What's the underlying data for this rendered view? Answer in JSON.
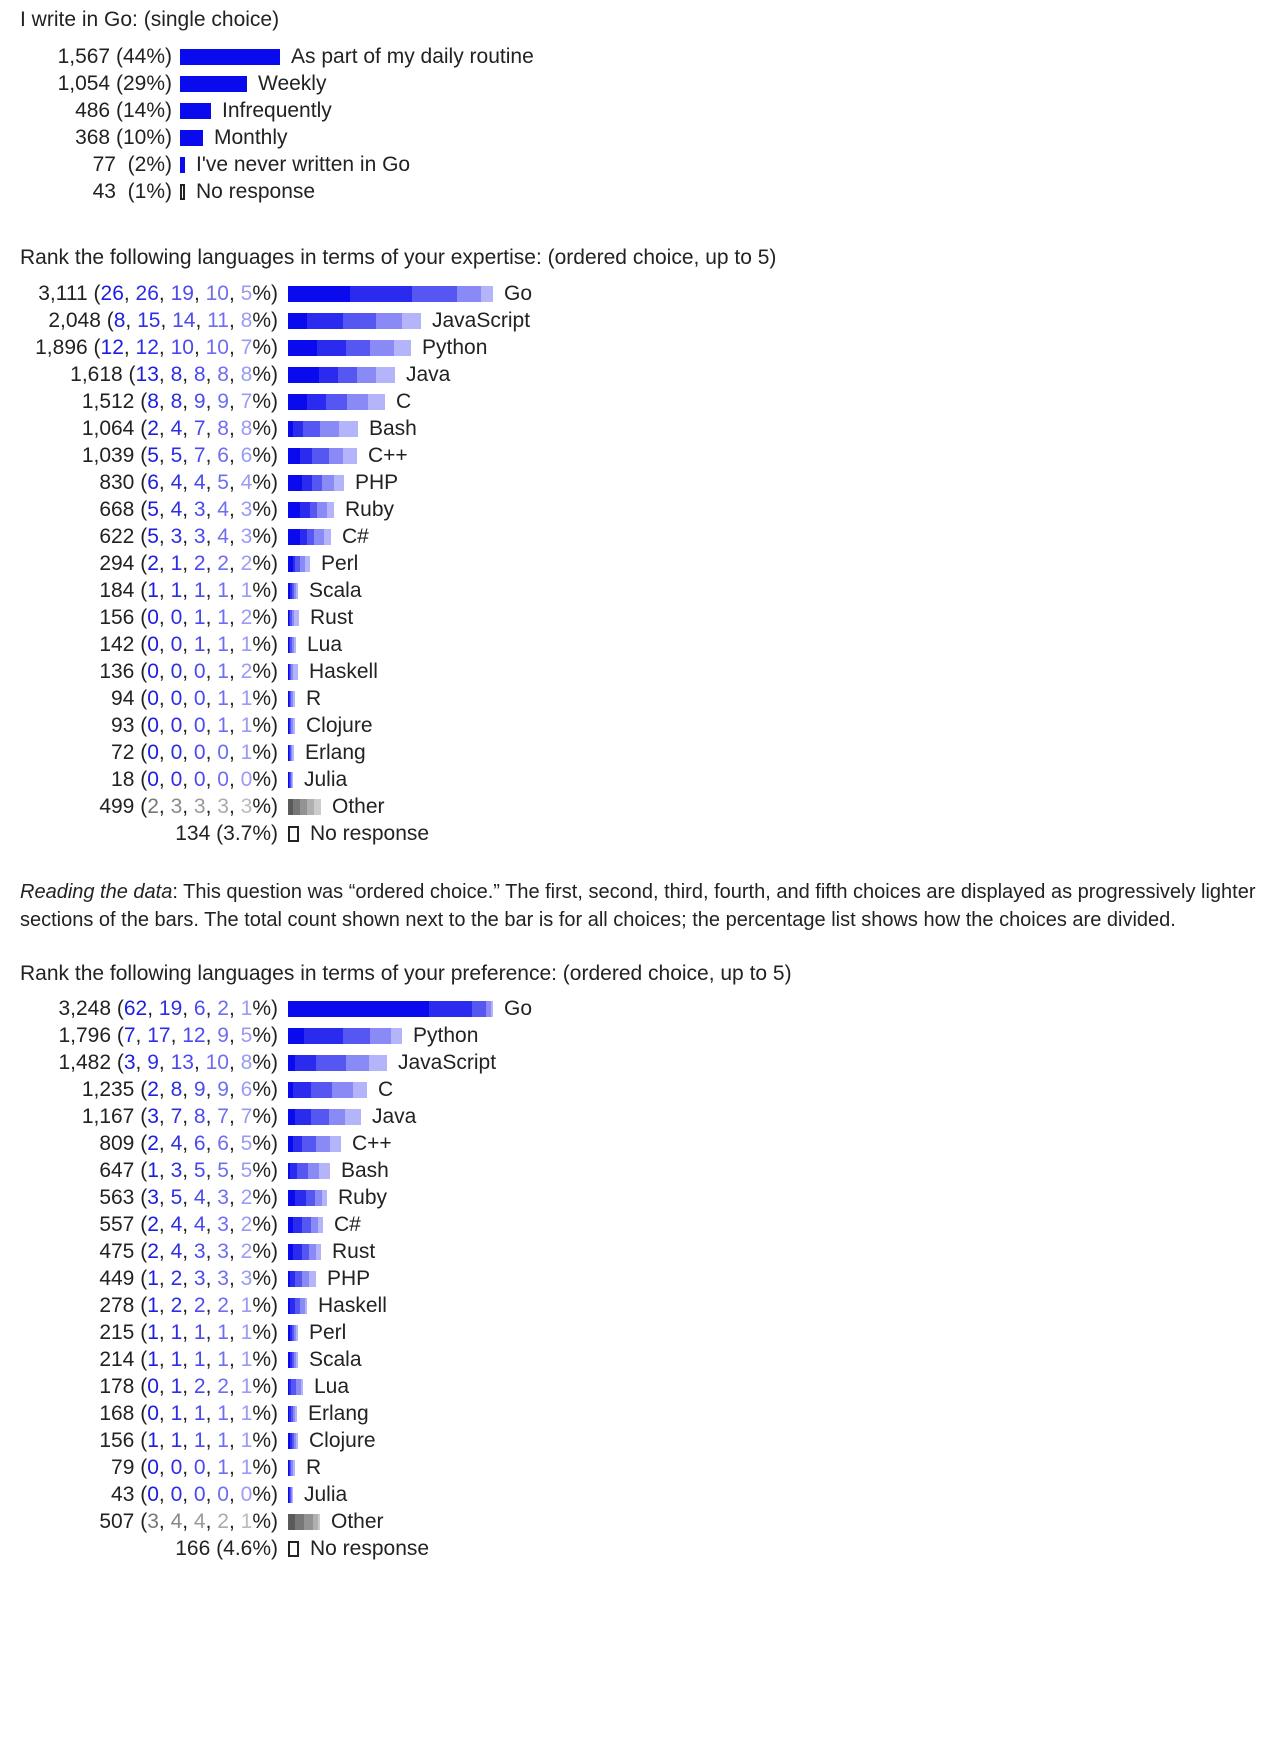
{
  "colors": {
    "text": "#222222",
    "bar": "#0a0aee",
    "ordered_shades": [
      "#0a0aee",
      "#2b2bf0",
      "#5656f3",
      "#8a8af7",
      "#b4b4fa"
    ],
    "other_shades": [
      "#5a5a5a",
      "#777777",
      "#939393",
      "#b0b0b0",
      "#cccccc"
    ],
    "percent_shades": [
      "#1d1dde",
      "#2e2ee6",
      "#4a4aee",
      "#6e6ef3",
      "#9a9af7"
    ],
    "other_percent_shades": [
      "#777777",
      "#888888",
      "#999999",
      "#aaaaaa",
      "#bbbbbb"
    ]
  },
  "chart_data": [
    {
      "type": "bar",
      "title": "I write in Go: (single choice)",
      "rows": [
        {
          "label": "As part of my daily routine",
          "count": "1,567",
          "pct": "(44%)",
          "value": 1567
        },
        {
          "label": "Weekly",
          "count": "1,054",
          "pct": "(29%)",
          "value": 1054
        },
        {
          "label": "Infrequently",
          "count": "486",
          "pct": "(14%)",
          "value": 486
        },
        {
          "label": "Monthly",
          "count": "368",
          "pct": "(10%)",
          "value": 368
        },
        {
          "label": "I've never written in Go",
          "count": "77",
          "pct": "(2%)",
          "value": 77
        },
        {
          "label": "No response",
          "count": "43",
          "pct": "(1%)",
          "value": 43,
          "no_response": true
        }
      ]
    },
    {
      "type": "bar",
      "title": "Rank the following languages in terms of your expertise: (ordered choice, up to 5)",
      "rows": [
        {
          "label": "Go",
          "count": "3,111",
          "values": [
            26,
            26,
            19,
            10,
            5
          ]
        },
        {
          "label": "JavaScript",
          "count": "2,048",
          "values": [
            8,
            15,
            14,
            11,
            8
          ]
        },
        {
          "label": "Python",
          "count": "1,896",
          "values": [
            12,
            12,
            10,
            10,
            7
          ]
        },
        {
          "label": "Java",
          "count": "1,618",
          "values": [
            13,
            8,
            8,
            8,
            8
          ]
        },
        {
          "label": "C",
          "count": "1,512",
          "values": [
            8,
            8,
            9,
            9,
            7
          ]
        },
        {
          "label": "Bash",
          "count": "1,064",
          "values": [
            2,
            4,
            7,
            8,
            8
          ]
        },
        {
          "label": "C++",
          "count": "1,039",
          "values": [
            5,
            5,
            7,
            6,
            6
          ]
        },
        {
          "label": "PHP",
          "count": "830",
          "values": [
            6,
            4,
            4,
            5,
            4
          ]
        },
        {
          "label": "Ruby",
          "count": "668",
          "values": [
            5,
            4,
            3,
            4,
            3
          ]
        },
        {
          "label": "C#",
          "count": "622",
          "values": [
            5,
            3,
            3,
            4,
            3
          ]
        },
        {
          "label": "Perl",
          "count": "294",
          "values": [
            2,
            1,
            2,
            2,
            2
          ]
        },
        {
          "label": "Scala",
          "count": "184",
          "values": [
            1,
            1,
            1,
            1,
            1
          ]
        },
        {
          "label": "Rust",
          "count": "156",
          "values": [
            0,
            0,
            1,
            1,
            2
          ]
        },
        {
          "label": "Lua",
          "count": "142",
          "values": [
            0,
            0,
            1,
            1,
            1
          ]
        },
        {
          "label": "Haskell",
          "count": "136",
          "values": [
            0,
            0,
            0,
            1,
            2
          ]
        },
        {
          "label": "R",
          "count": "94",
          "values": [
            0,
            0,
            0,
            1,
            1
          ]
        },
        {
          "label": "Clojure",
          "count": "93",
          "values": [
            0,
            0,
            0,
            1,
            1
          ]
        },
        {
          "label": "Erlang",
          "count": "72",
          "values": [
            0,
            0,
            0,
            0,
            1
          ]
        },
        {
          "label": "Julia",
          "count": "18",
          "values": [
            0,
            0,
            0,
            0,
            0
          ]
        },
        {
          "label": "Other",
          "count": "499",
          "values": [
            2,
            3,
            3,
            3,
            3
          ],
          "other": true
        },
        {
          "label": "No response",
          "count": "134",
          "pct": "(3.7%)",
          "no_response": true
        }
      ]
    },
    {
      "type": "bar",
      "title": "Rank the following languages in terms of your preference: (ordered choice, up to 5)",
      "rows": [
        {
          "label": "Go",
          "count": "3,248",
          "values": [
            62,
            19,
            6,
            2,
            1
          ]
        },
        {
          "label": "Python",
          "count": "1,796",
          "values": [
            7,
            17,
            12,
            9,
            5
          ]
        },
        {
          "label": "JavaScript",
          "count": "1,482",
          "values": [
            3,
            9,
            13,
            10,
            8
          ]
        },
        {
          "label": "C",
          "count": "1,235",
          "values": [
            2,
            8,
            9,
            9,
            6
          ]
        },
        {
          "label": "Java",
          "count": "1,167",
          "values": [
            3,
            7,
            8,
            7,
            7
          ]
        },
        {
          "label": "C++",
          "count": "809",
          "values": [
            2,
            4,
            6,
            6,
            5
          ]
        },
        {
          "label": "Bash",
          "count": "647",
          "values": [
            1,
            3,
            5,
            5,
            5
          ]
        },
        {
          "label": "Ruby",
          "count": "563",
          "values": [
            3,
            5,
            4,
            3,
            2
          ]
        },
        {
          "label": "C#",
          "count": "557",
          "values": [
            2,
            4,
            4,
            3,
            2
          ]
        },
        {
          "label": "Rust",
          "count": "475",
          "values": [
            2,
            4,
            3,
            3,
            2
          ]
        },
        {
          "label": "PHP",
          "count": "449",
          "values": [
            1,
            2,
            3,
            3,
            3
          ]
        },
        {
          "label": "Haskell",
          "count": "278",
          "values": [
            1,
            2,
            2,
            2,
            1
          ]
        },
        {
          "label": "Perl",
          "count": "215",
          "values": [
            1,
            1,
            1,
            1,
            1
          ]
        },
        {
          "label": "Scala",
          "count": "214",
          "values": [
            1,
            1,
            1,
            1,
            1
          ]
        },
        {
          "label": "Lua",
          "count": "178",
          "values": [
            0,
            1,
            2,
            2,
            1
          ]
        },
        {
          "label": "Erlang",
          "count": "168",
          "values": [
            0,
            1,
            1,
            1,
            1
          ]
        },
        {
          "label": "Clojure",
          "count": "156",
          "values": [
            1,
            1,
            1,
            1,
            1
          ]
        },
        {
          "label": "R",
          "count": "79",
          "values": [
            0,
            0,
            0,
            1,
            1
          ]
        },
        {
          "label": "Julia",
          "count": "43",
          "values": [
            0,
            0,
            0,
            0,
            0
          ]
        },
        {
          "label": "Other",
          "count": "507",
          "values": [
            3,
            4,
            4,
            2,
            1
          ],
          "other": true
        },
        {
          "label": "No response",
          "count": "166",
          "pct": "(4.6%)",
          "no_response": true
        }
      ]
    }
  ],
  "note": {
    "lead": "Reading the data",
    "text": ": This question was “ordered choice.” The first, second, third, fourth, and fifth choices are displayed as progressively lighter sections of the bars. The total count shown next to the bar is for all choices; the percentage list shows how the choices are divided."
  }
}
